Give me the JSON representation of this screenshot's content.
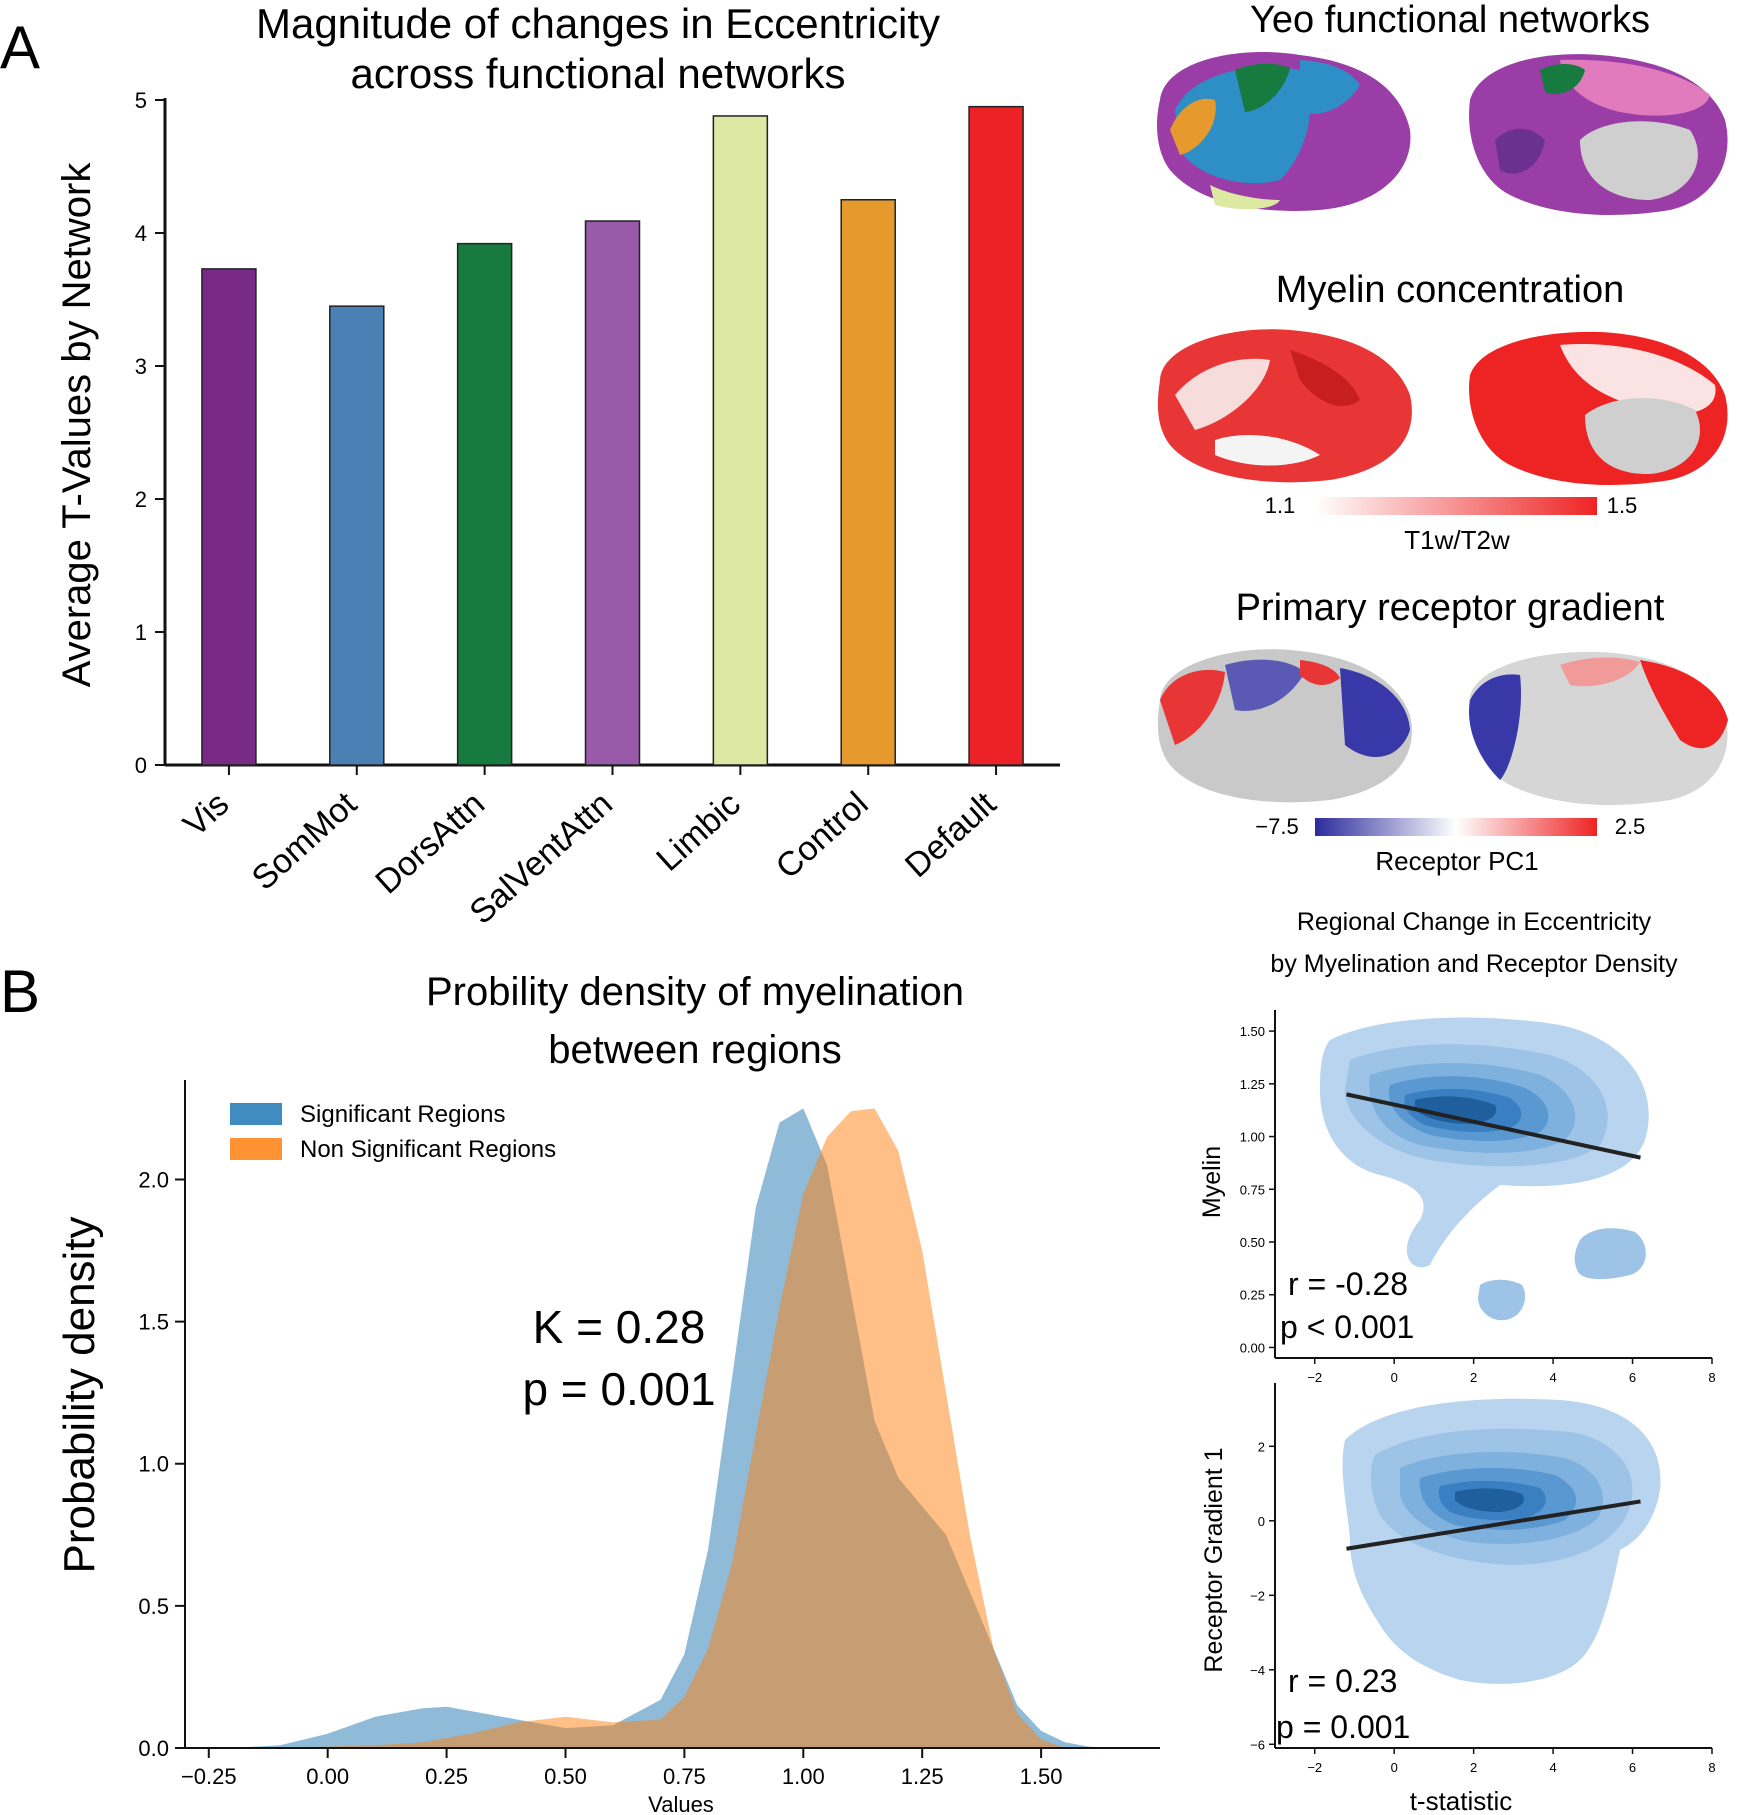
{
  "panel_labels": {
    "a": "A",
    "b": "B"
  },
  "brain_panels": {
    "yeo": {
      "title": "Yeo functional networks"
    },
    "myelin": {
      "title": "Myelin concentration",
      "cb_min": "1.1",
      "cb_max": "1.5",
      "cb_label": "T1w/T2w",
      "cb_color_low": "#ffffff",
      "cb_color_high": "#ee2424"
    },
    "receptor": {
      "title": "Primary receptor gradient",
      "cb_min": "−7.5",
      "cb_max": "2.5",
      "cb_label": "Receptor PC1",
      "cb_color_low": "#2b2b9e",
      "cb_color_high": "#ee2424"
    }
  },
  "chart_data": [
    {
      "id": "bar",
      "type": "bar",
      "title": [
        "Magnitude of changes in Eccentricity",
        "across functional networks"
      ],
      "xlabel": "",
      "ylabel": "Average T-Values by Network",
      "categories": [
        "Vis",
        "SomMot",
        "DorsAttn",
        "SalVentAttn",
        "Limbic",
        "Control",
        "Default"
      ],
      "values": [
        3.73,
        3.45,
        3.92,
        4.09,
        4.88,
        4.25,
        4.95
      ],
      "colors": [
        "#782a86",
        "#4a80b4",
        "#177a3f",
        "#985aa9",
        "#dde8a3",
        "#e69a2d",
        "#ec2227"
      ],
      "ylim": [
        0,
        5
      ],
      "yticks": [
        "0",
        "1",
        "2",
        "3",
        "4",
        "5"
      ]
    },
    {
      "id": "density",
      "type": "area",
      "title": [
        "Probility density of myelination",
        "between regions"
      ],
      "xlabel": "Values",
      "ylabel": "Probability density",
      "xlim": [
        -0.3,
        1.75
      ],
      "ylim": [
        0,
        2.35
      ],
      "xticks": [
        "−0.25",
        "0.00",
        "0.25",
        "0.50",
        "0.75",
        "1.00",
        "1.25",
        "1.50"
      ],
      "yticks": [
        "0.0",
        "0.5",
        "1.0",
        "1.5",
        "2.0"
      ],
      "annotation": [
        "K = 0.28",
        "p = 0.001"
      ],
      "series": [
        {
          "name": "Significant Regions",
          "color": "#1f77b4",
          "x": [
            -0.2,
            -0.1,
            0.0,
            0.1,
            0.2,
            0.25,
            0.3,
            0.4,
            0.5,
            0.6,
            0.7,
            0.75,
            0.8,
            0.85,
            0.9,
            0.95,
            1.0,
            1.05,
            1.1,
            1.15,
            1.2,
            1.25,
            1.3,
            1.35,
            1.4,
            1.45,
            1.5,
            1.55,
            1.6,
            1.65
          ],
          "y": [
            0.0,
            0.01,
            0.05,
            0.11,
            0.14,
            0.145,
            0.13,
            0.1,
            0.07,
            0.08,
            0.17,
            0.33,
            0.7,
            1.3,
            1.9,
            2.2,
            2.25,
            2.05,
            1.6,
            1.15,
            0.95,
            0.85,
            0.75,
            0.55,
            0.35,
            0.15,
            0.06,
            0.02,
            0.005,
            0.0
          ]
        },
        {
          "name": "Non Significant Regions",
          "color": "#ff7f0e",
          "x": [
            -0.1,
            0.0,
            0.1,
            0.2,
            0.3,
            0.4,
            0.5,
            0.6,
            0.7,
            0.75,
            0.8,
            0.85,
            0.9,
            0.95,
            1.0,
            1.05,
            1.1,
            1.15,
            1.2,
            1.25,
            1.3,
            1.35,
            1.4,
            1.45,
            1.5,
            1.55
          ],
          "y": [
            0.0,
            0.005,
            0.01,
            0.02,
            0.05,
            0.09,
            0.11,
            0.09,
            0.1,
            0.18,
            0.35,
            0.65,
            1.1,
            1.55,
            1.95,
            2.15,
            2.24,
            2.25,
            2.1,
            1.75,
            1.25,
            0.75,
            0.35,
            0.12,
            0.03,
            0.0
          ]
        }
      ]
    },
    {
      "id": "kde_myelin",
      "type": "scatter",
      "suptitle": [
        "Regional Change in Eccentricity",
        "by Myelination and Receptor Density"
      ],
      "xlabel": "",
      "ylabel": "Myelin",
      "xlim": [
        -3,
        8
      ],
      "ylim": [
        -0.05,
        1.6
      ],
      "xticks": [
        "−2",
        "0",
        "2",
        "4",
        "6",
        "8"
      ],
      "yticks": [
        "0.00",
        "0.25",
        "0.50",
        "0.75",
        "1.00",
        "1.25",
        "1.50"
      ],
      "regression": {
        "x": [
          -1.2,
          6.2
        ],
        "y": [
          1.2,
          0.9
        ]
      },
      "annotation": [
        "r = -0.28",
        "p < 0.001"
      ]
    },
    {
      "id": "kde_receptor",
      "type": "scatter",
      "xlabel": "t-statistic",
      "ylabel": "Receptor Gradient 1",
      "xlim": [
        -3,
        8
      ],
      "ylim": [
        -6.1,
        3.7
      ],
      "xticks": [
        "−2",
        "0",
        "2",
        "4",
        "6",
        "8"
      ],
      "yticks": [
        "−6",
        "−4",
        "−2",
        "0",
        "2"
      ],
      "regression": {
        "x": [
          -1.2,
          6.2
        ],
        "y": [
          -0.75,
          0.52
        ]
      },
      "annotation": [
        "r = 0.23",
        "p = 0.001"
      ]
    }
  ]
}
